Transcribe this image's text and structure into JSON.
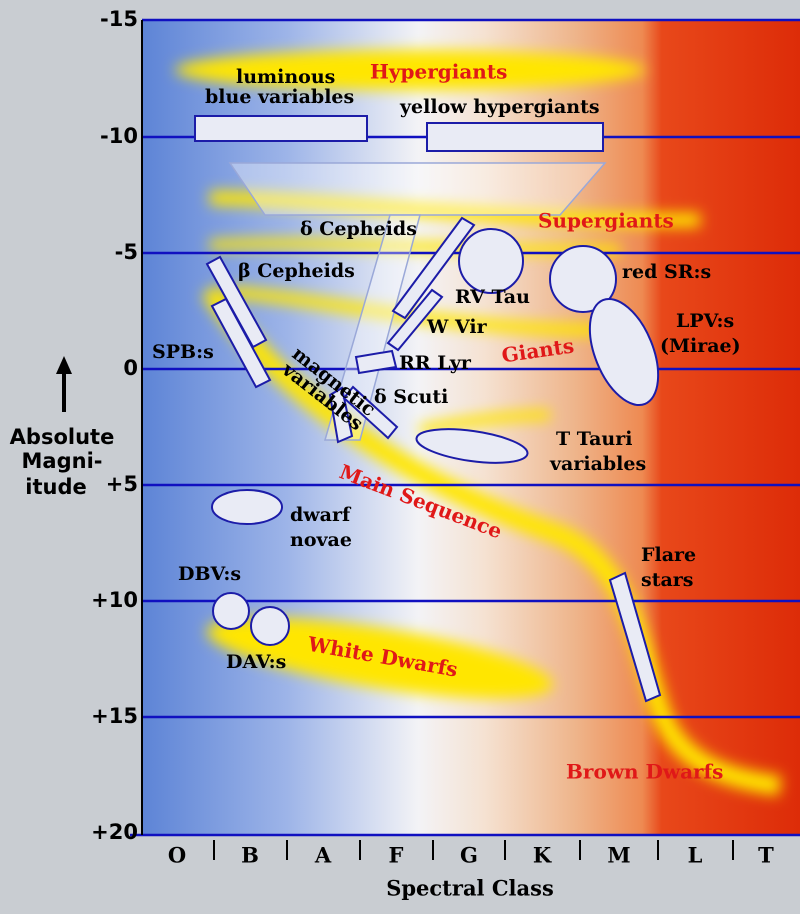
{
  "y_axis": {
    "label": [
      "Absolute",
      "Magni-",
      "itude"
    ],
    "ticks": [
      "-15",
      "-10",
      "-5",
      "0",
      "+5",
      "+10",
      "+15",
      "+20"
    ]
  },
  "x_axis": {
    "label": "Spectral Class",
    "classes": [
      "O",
      "B",
      "A",
      "F",
      "G",
      "K",
      "M",
      "L",
      "T"
    ]
  },
  "regions": [
    "Hypergiants",
    "Supergiants",
    "Giants",
    "Main Sequence",
    "White Dwarfs",
    "Brown Dwarfs"
  ],
  "variables": [
    [
      "luminous",
      "blue variables"
    ],
    [
      "yellow hypergiants"
    ],
    [
      "δ Cepheids"
    ],
    [
      "β Cepheids"
    ],
    [
      "RV Tau"
    ],
    [
      "W Vir"
    ],
    [
      "RR Lyr"
    ],
    [
      "δ Scuti"
    ],
    [
      "magnetic",
      "variables"
    ],
    [
      "SPB:s"
    ],
    [
      "red SR:s"
    ],
    [
      "LPV:s",
      "(Mirae)"
    ],
    [
      "T Tauri",
      "variables"
    ],
    [
      "dwarf",
      "novae"
    ],
    [
      "DBV:s"
    ],
    [
      "DAV:s"
    ],
    [
      "Flare",
      "stars"
    ]
  ]
}
